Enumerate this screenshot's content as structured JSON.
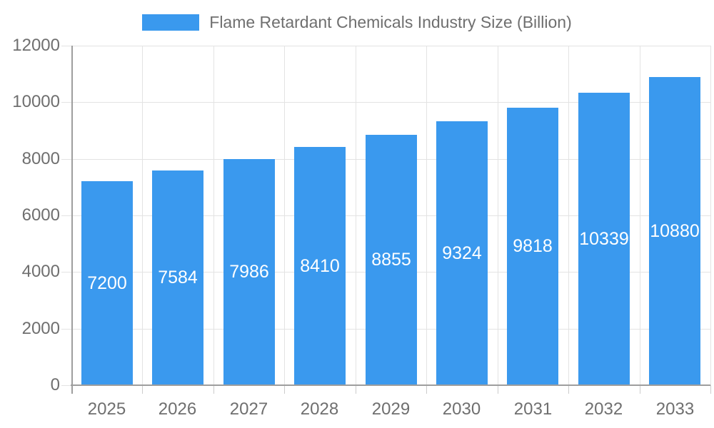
{
  "chart_data": {
    "type": "bar",
    "title": "Flame Retardant Chemicals Industry Size (Billion)",
    "categories": [
      "2025",
      "2026",
      "2027",
      "2028",
      "2029",
      "2030",
      "2031",
      "2032",
      "2033"
    ],
    "values": [
      7200,
      7584,
      7986,
      8410,
      8855,
      9324,
      9818,
      10339,
      10880
    ],
    "series": [
      {
        "name": "Flame Retardant Chemicals Industry Size (Billion)",
        "values": [
          7200,
          7584,
          7986,
          8410,
          8855,
          9324,
          9818,
          10339,
          10880
        ]
      }
    ],
    "xlabel": "",
    "ylabel": "",
    "ylim": [
      0,
      12000
    ],
    "yticks": [
      0,
      2000,
      4000,
      6000,
      8000,
      10000,
      12000
    ],
    "grid": true,
    "legend_position": "top",
    "value_labels": "inside-center"
  },
  "colors": {
    "bar": "#3A99EE",
    "bar_label": "#FFFFFF",
    "axis_line": "#9E9E9E",
    "gridline": "#E3E3E3",
    "tick": "#CCCCCC",
    "text": "#6F6F6F",
    "background": "#FFFFFF"
  }
}
